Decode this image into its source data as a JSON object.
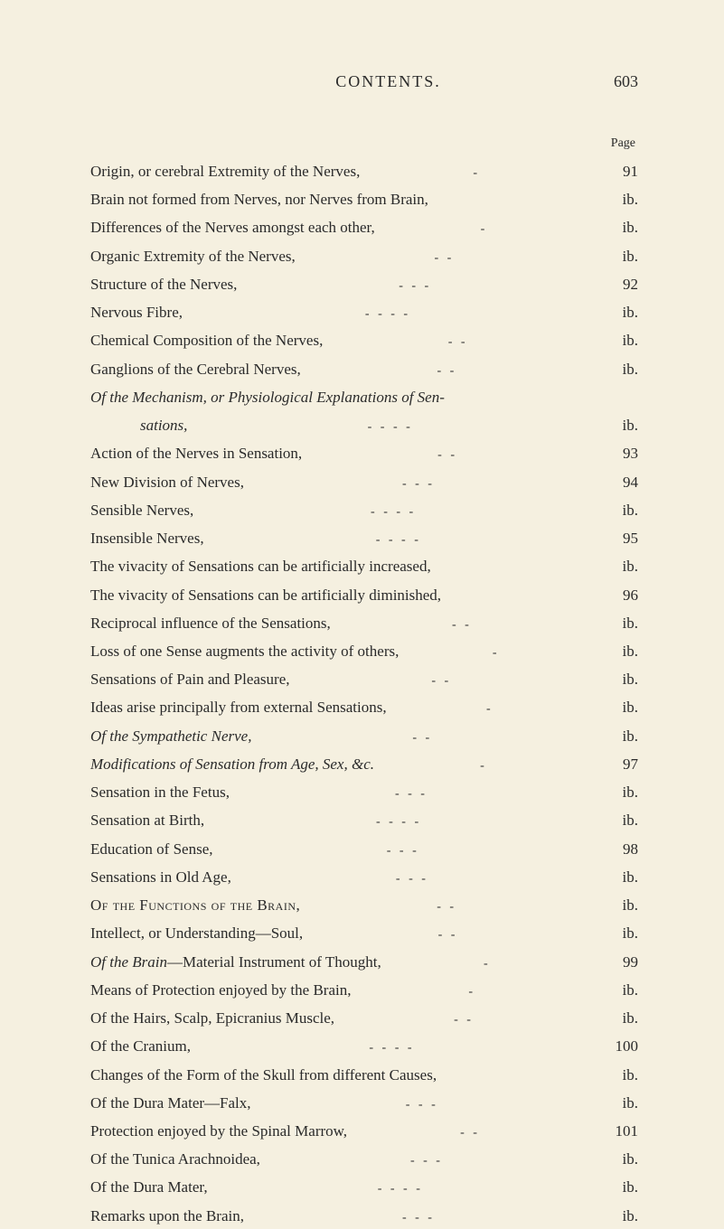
{
  "header": {
    "title": "CONTENTS.",
    "page_number": "603",
    "page_label": "Page"
  },
  "colors": {
    "background": "#f5f0e0",
    "text": "#2a2a2a"
  },
  "typography": {
    "font_family": "Georgia, Times New Roman, serif",
    "body_size": 17,
    "header_size": 18,
    "line_height": 1.72
  },
  "entries": [
    {
      "text": "Origin, or cerebral Extremity of the Nerves,",
      "page": "91",
      "sep": "-"
    },
    {
      "text": "Brain not formed from Nerves, nor Nerves from Brain,",
      "page": "ib.",
      "sep": ""
    },
    {
      "text": "Differences of the Nerves amongst each other,",
      "page": "ib.",
      "sep": "-"
    },
    {
      "text": "Organic Extremity of the Nerves,",
      "page": "ib.",
      "sep": "-    -"
    },
    {
      "text": "Structure of the Nerves,",
      "page": "92",
      "sep": "-    -    -"
    },
    {
      "text": "Nervous Fibre,",
      "page": "ib.",
      "sep": "-    -    -    -"
    },
    {
      "text": "Chemical Composition of the Nerves,",
      "page": "ib.",
      "sep": "-    -"
    },
    {
      "text": "Ganglions of the Cerebral Nerves,",
      "page": "ib.",
      "sep": "-    -"
    },
    {
      "text_parts": [
        {
          "t": "Of the Mechanism, or Physiological Explanations of Sen-",
          "italic": true
        }
      ],
      "page": "",
      "sep": "",
      "no_page": true
    },
    {
      "text_parts": [
        {
          "t": "sations,",
          "italic": true
        }
      ],
      "page": "ib.",
      "sep": "-    -    -    -",
      "indent": 1
    },
    {
      "text": "Action of the Nerves in Sensation,",
      "page": "93",
      "sep": "-    -"
    },
    {
      "text": "New Division of Nerves,",
      "page": "94",
      "sep": "-    -    -"
    },
    {
      "text": "Sensible Nerves,",
      "page": "ib.",
      "sep": "-    -    -    -"
    },
    {
      "text": "Insensible Nerves,",
      "page": "95",
      "sep": "-    -    -    -"
    },
    {
      "text": "The vivacity of Sensations can be artificially increased,",
      "page": "ib.",
      "sep": ""
    },
    {
      "text": "The vivacity of Sensations can be artificially diminished,",
      "page": "96",
      "sep": ""
    },
    {
      "text": "Reciprocal influence of the Sensations,",
      "page": "ib.",
      "sep": "-    -"
    },
    {
      "text": "Loss of one Sense augments the activity of others,",
      "page": "ib.",
      "sep": "-"
    },
    {
      "text": "Sensations of Pain and Pleasure,",
      "page": "ib.",
      "sep": "-    -"
    },
    {
      "text": "Ideas arise principally from external Sensations,",
      "page": "ib.",
      "sep": "-"
    },
    {
      "text_parts": [
        {
          "t": "Of the Sympathetic Nerve,",
          "italic": true
        }
      ],
      "page": "ib.",
      "sep": "-    -"
    },
    {
      "text_parts": [
        {
          "t": "Modifications of Sensation from Age, Sex, &c.",
          "italic": true
        }
      ],
      "page": "97",
      "sep": "-"
    },
    {
      "text": "Sensation in the Fetus,",
      "page": "ib.",
      "sep": "-    -    -"
    },
    {
      "text": "Sensation at Birth,",
      "page": "ib.",
      "sep": "-    -    -    -"
    },
    {
      "text": "Education of Sense,",
      "page": "98",
      "sep": "-    -    -"
    },
    {
      "text": "Sensations in Old Age,",
      "page": "ib.",
      "sep": "-    -    -"
    },
    {
      "text_parts": [
        {
          "t": "Of the Functions of the Brain,",
          "smallcaps": true
        }
      ],
      "page": "ib.",
      "sep": "-    -"
    },
    {
      "text": "Intellect, or Understanding—Soul,",
      "page": "ib.",
      "sep": "-    -"
    },
    {
      "text_parts": [
        {
          "t": "Of the Brain",
          "italic": true
        },
        {
          "t": "—Material Instrument of Thought,"
        }
      ],
      "page": "99",
      "sep": "-"
    },
    {
      "text": "Means of Protection enjoyed by the Brain,",
      "page": "ib.",
      "sep": "-"
    },
    {
      "text": "Of the Hairs, Scalp, Epicranius Muscle,",
      "page": "ib.",
      "sep": "-    -"
    },
    {
      "text": "Of the Cranium,",
      "page": "100",
      "sep": "-    -    -    -"
    },
    {
      "text": "Changes of the Form of the Skull from different Causes,",
      "page": "ib.",
      "sep": ""
    },
    {
      "text": "Of the Dura Mater—Falx,",
      "page": "ib.",
      "sep": "-    -    -"
    },
    {
      "text": "Protection enjoyed by the Spinal Marrow,",
      "page": "101",
      "sep": "-    -"
    },
    {
      "text": "Of the Tunica Arachnoidea,",
      "page": "ib.",
      "sep": "-    -    -"
    },
    {
      "text": "Of the Dura Mater,",
      "page": "ib.",
      "sep": "-    -    -    -"
    },
    {
      "text": "Remarks upon the Brain,",
      "page": "ib.",
      "sep": "-    -    -"
    }
  ]
}
